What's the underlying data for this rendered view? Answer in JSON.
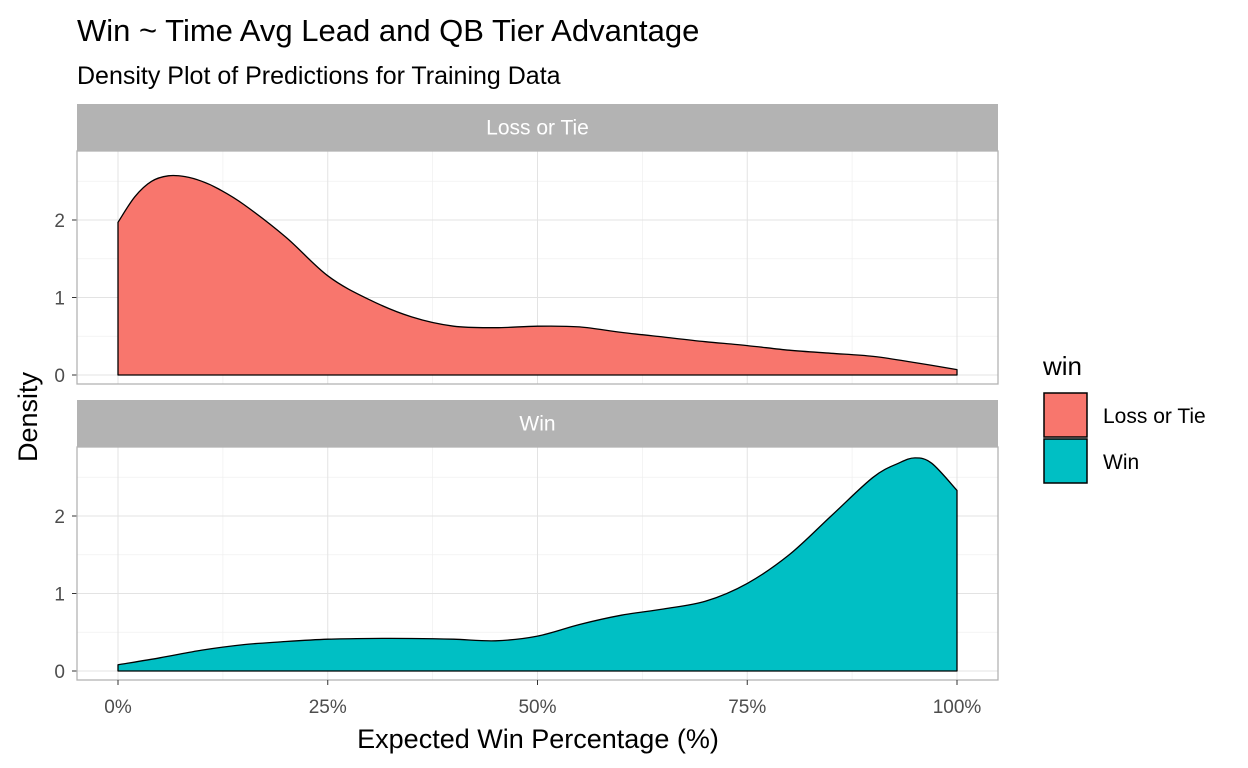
{
  "chart_data": {
    "type": "area",
    "title": "Win ~ Time Avg Lead and QB Tier Advantage",
    "subtitle": "Density Plot of Predictions for Training Data",
    "xlabel": "Expected Win Percentage (%)",
    "ylabel": "Density",
    "xlim": [
      0,
      1
    ],
    "ylim": [
      0,
      2.75
    ],
    "x_ticks": [
      0,
      0.25,
      0.5,
      0.75,
      1.0
    ],
    "x_tick_labels": [
      "0%",
      "25%",
      "50%",
      "75%",
      "100%"
    ],
    "y_ticks": [
      0,
      1,
      2
    ],
    "y_tick_labels": [
      "0",
      "1",
      "2"
    ],
    "grid": true,
    "legend": {
      "title": "win",
      "position": "right",
      "entries": [
        {
          "label": "Loss or Tie",
          "color": "#F8766D"
        },
        {
          "label": "Win",
          "color": "#00BFC4"
        }
      ]
    },
    "panels": [
      {
        "strip": "Loss or Tie",
        "color": "#F8766D",
        "x": [
          0,
          0.02,
          0.04,
          0.06,
          0.08,
          0.1,
          0.12,
          0.15,
          0.2,
          0.25,
          0.3,
          0.35,
          0.4,
          0.45,
          0.5,
          0.55,
          0.6,
          0.65,
          0.7,
          0.75,
          0.8,
          0.85,
          0.9,
          0.95,
          1.0
        ],
        "y": [
          1.97,
          2.3,
          2.5,
          2.57,
          2.56,
          2.5,
          2.4,
          2.2,
          1.78,
          1.28,
          0.97,
          0.75,
          0.63,
          0.61,
          0.63,
          0.62,
          0.55,
          0.49,
          0.43,
          0.38,
          0.32,
          0.28,
          0.24,
          0.16,
          0.07
        ]
      },
      {
        "strip": "Win",
        "color": "#00BFC4",
        "x": [
          0,
          0.05,
          0.1,
          0.15,
          0.2,
          0.25,
          0.3,
          0.35,
          0.4,
          0.45,
          0.5,
          0.55,
          0.6,
          0.65,
          0.7,
          0.75,
          0.8,
          0.85,
          0.9,
          0.93,
          0.95,
          0.97,
          1.0
        ],
        "y": [
          0.08,
          0.17,
          0.27,
          0.34,
          0.38,
          0.41,
          0.42,
          0.42,
          0.41,
          0.39,
          0.45,
          0.6,
          0.72,
          0.8,
          0.9,
          1.13,
          1.5,
          2.0,
          2.5,
          2.68,
          2.75,
          2.68,
          2.33
        ]
      }
    ]
  }
}
